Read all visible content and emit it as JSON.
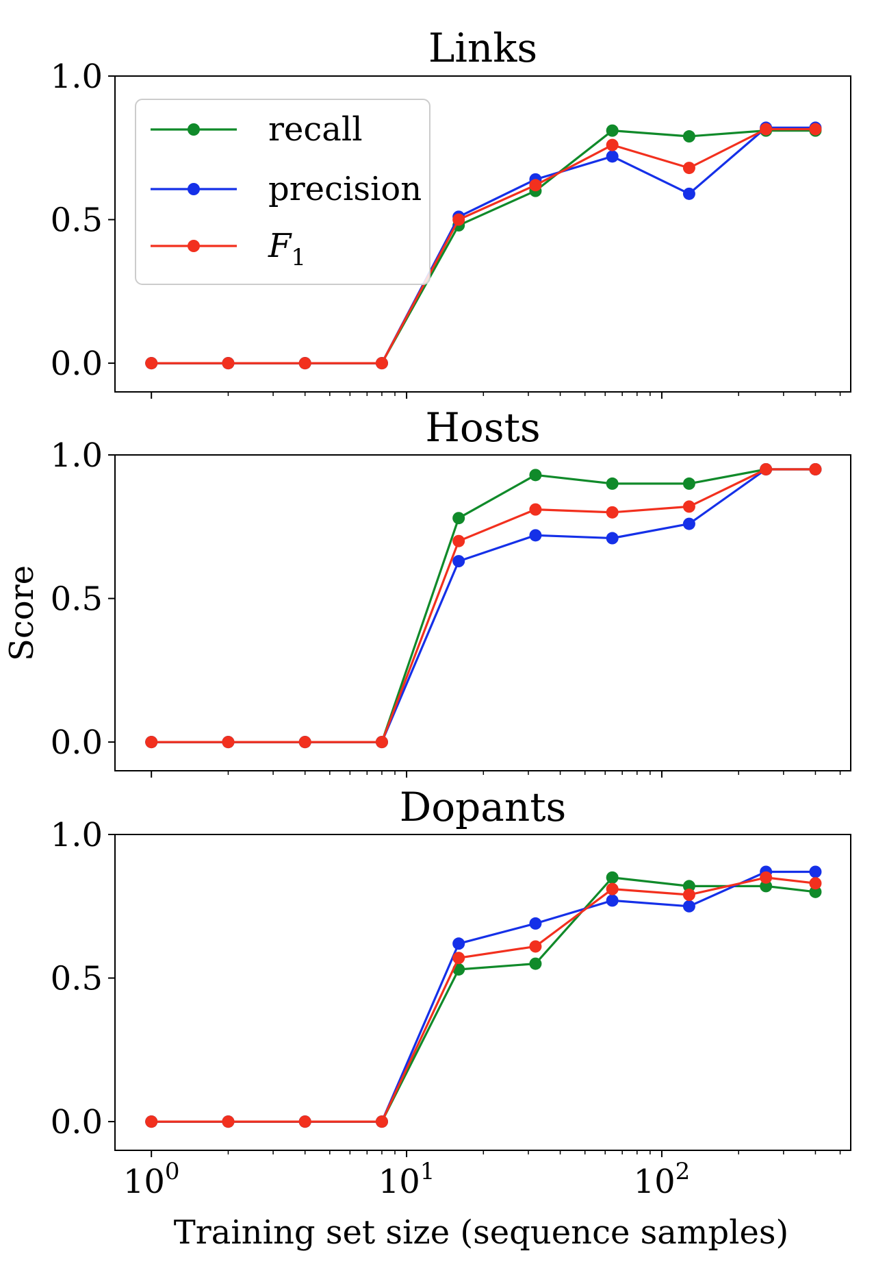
{
  "chart_data": [
    {
      "type": "line",
      "title": "Links",
      "xscale": "log",
      "x": [
        1,
        2,
        4,
        8,
        16,
        32,
        64,
        128,
        256,
        400
      ],
      "ylim": [
        -0.1,
        1.0
      ],
      "yticks": [
        "0.0",
        "0.5",
        "1.0"
      ],
      "series": [
        {
          "name": "recall",
          "color": "#108a2a",
          "values": [
            0,
            0,
            0,
            0,
            0.48,
            0.6,
            0.81,
            0.79,
            0.81,
            0.81
          ]
        },
        {
          "name": "precision",
          "color": "#1530e8",
          "values": [
            0,
            0,
            0,
            0,
            0.51,
            0.64,
            0.72,
            0.59,
            0.82,
            0.82
          ]
        },
        {
          "name": "F1",
          "color": "#f2301e",
          "values": [
            0,
            0,
            0,
            0,
            0.5,
            0.62,
            0.76,
            0.68,
            0.815,
            0.815
          ]
        }
      ],
      "legend": {
        "position": "top-left"
      }
    },
    {
      "type": "line",
      "title": "Hosts",
      "xscale": "log",
      "x": [
        1,
        2,
        4,
        8,
        16,
        32,
        64,
        128,
        256,
        400
      ],
      "ylim": [
        -0.1,
        1.0
      ],
      "yticks": [
        "0.0",
        "0.5",
        "1.0"
      ],
      "series": [
        {
          "name": "recall",
          "color": "#108a2a",
          "values": [
            0,
            0,
            0,
            0,
            0.78,
            0.93,
            0.9,
            0.9,
            0.95,
            0.95
          ]
        },
        {
          "name": "precision",
          "color": "#1530e8",
          "values": [
            0,
            0,
            0,
            0,
            0.63,
            0.72,
            0.71,
            0.76,
            0.95,
            0.95
          ]
        },
        {
          "name": "F1",
          "color": "#f2301e",
          "values": [
            0,
            0,
            0,
            0,
            0.7,
            0.81,
            0.8,
            0.82,
            0.95,
            0.95
          ]
        }
      ]
    },
    {
      "type": "line",
      "title": "Dopants",
      "xscale": "log",
      "x": [
        1,
        2,
        4,
        8,
        16,
        32,
        64,
        128,
        256,
        400
      ],
      "ylim": [
        -0.1,
        1.0
      ],
      "yticks": [
        "0.0",
        "0.5",
        "1.0"
      ],
      "xticks": [
        {
          "value": 1,
          "base": "10",
          "exp": "0"
        },
        {
          "value": 10,
          "base": "10",
          "exp": "1"
        },
        {
          "value": 100,
          "base": "10",
          "exp": "2"
        }
      ],
      "series": [
        {
          "name": "recall",
          "color": "#108a2a",
          "values": [
            0,
            0,
            0,
            0,
            0.53,
            0.55,
            0.85,
            0.82,
            0.82,
            0.8
          ]
        },
        {
          "name": "precision",
          "color": "#1530e8",
          "values": [
            0,
            0,
            0,
            0,
            0.62,
            0.69,
            0.77,
            0.75,
            0.87,
            0.87
          ]
        },
        {
          "name": "F1",
          "color": "#f2301e",
          "values": [
            0,
            0,
            0,
            0,
            0.57,
            0.61,
            0.81,
            0.79,
            0.85,
            0.83
          ]
        }
      ]
    }
  ],
  "xlabel": "Training set size (sequence samples)",
  "ylabel": "Score",
  "legend": [
    {
      "label": "recall",
      "color": "#108a2a"
    },
    {
      "label": "precision",
      "color": "#1530e8"
    },
    {
      "label": "F",
      "sub": "1",
      "color": "#f2301e"
    }
  ]
}
